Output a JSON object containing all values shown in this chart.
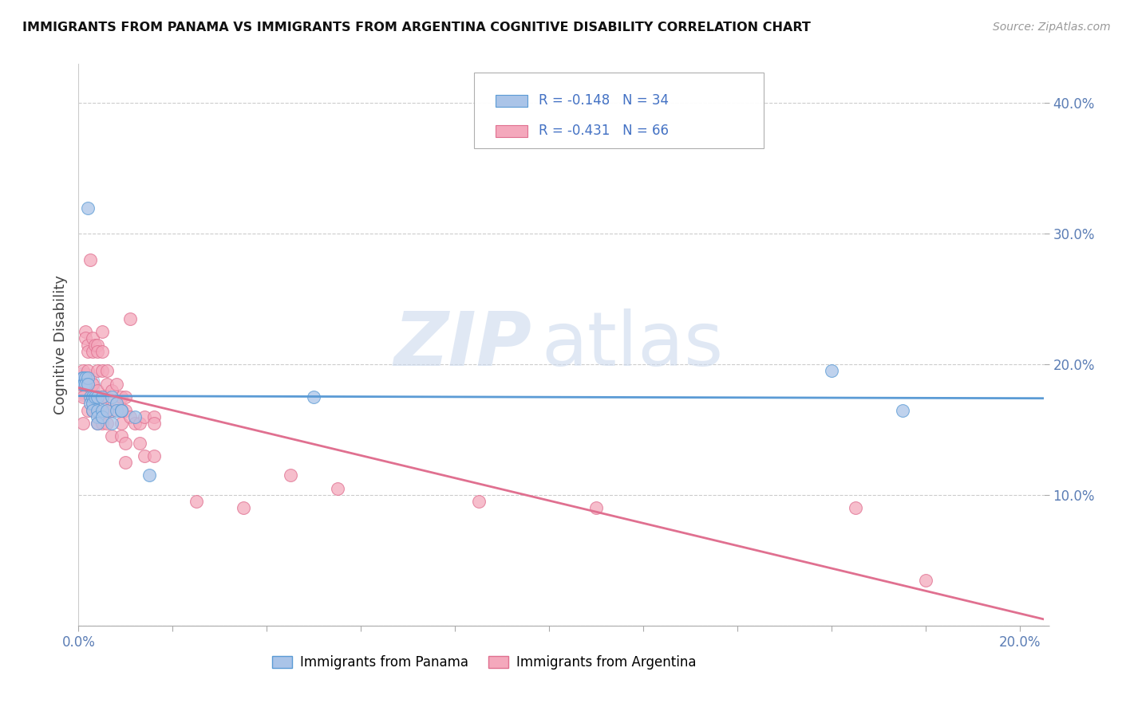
{
  "title": "IMMIGRANTS FROM PANAMA VS IMMIGRANTS FROM ARGENTINA COGNITIVE DISABILITY CORRELATION CHART",
  "source": "Source: ZipAtlas.com",
  "ylabel_label": "Cognitive Disability",
  "xlim": [
    0.0,
    0.205
  ],
  "ylim": [
    0.0,
    0.43
  ],
  "panama_R": -0.148,
  "panama_N": 34,
  "argentina_R": -0.431,
  "argentina_N": 66,
  "panama_color": "#aac4e8",
  "argentina_color": "#f4a8bc",
  "panama_line_color": "#5b9bd5",
  "argentina_line_color": "#e07090",
  "watermark_zip": "ZIP",
  "watermark_atlas": "atlas",
  "panama_x": [
    0.0008,
    0.001,
    0.001,
    0.0012,
    0.0015,
    0.0015,
    0.002,
    0.002,
    0.002,
    0.0025,
    0.0025,
    0.003,
    0.003,
    0.003,
    0.0035,
    0.004,
    0.004,
    0.004,
    0.004,
    0.005,
    0.005,
    0.005,
    0.006,
    0.007,
    0.007,
    0.008,
    0.008,
    0.009,
    0.009,
    0.012,
    0.015,
    0.05,
    0.16,
    0.175
  ],
  "panama_y": [
    0.19,
    0.19,
    0.185,
    0.185,
    0.19,
    0.185,
    0.19,
    0.185,
    0.32,
    0.175,
    0.17,
    0.175,
    0.17,
    0.165,
    0.175,
    0.175,
    0.165,
    0.16,
    0.155,
    0.175,
    0.165,
    0.16,
    0.165,
    0.155,
    0.175,
    0.17,
    0.165,
    0.165,
    0.165,
    0.16,
    0.115,
    0.175,
    0.195,
    0.165
  ],
  "argentina_x": [
    0.0005,
    0.001,
    0.001,
    0.001,
    0.001,
    0.0015,
    0.0015,
    0.002,
    0.002,
    0.002,
    0.002,
    0.002,
    0.0025,
    0.003,
    0.003,
    0.003,
    0.003,
    0.003,
    0.0035,
    0.004,
    0.004,
    0.004,
    0.004,
    0.004,
    0.004,
    0.005,
    0.005,
    0.005,
    0.005,
    0.005,
    0.006,
    0.006,
    0.006,
    0.006,
    0.006,
    0.007,
    0.007,
    0.007,
    0.008,
    0.008,
    0.009,
    0.009,
    0.009,
    0.009,
    0.01,
    0.01,
    0.01,
    0.01,
    0.011,
    0.011,
    0.012,
    0.013,
    0.013,
    0.014,
    0.014,
    0.016,
    0.016,
    0.016,
    0.025,
    0.035,
    0.045,
    0.055,
    0.085,
    0.11,
    0.165,
    0.18
  ],
  "argentina_y": [
    0.185,
    0.195,
    0.185,
    0.175,
    0.155,
    0.225,
    0.22,
    0.215,
    0.21,
    0.195,
    0.185,
    0.165,
    0.28,
    0.22,
    0.21,
    0.185,
    0.175,
    0.165,
    0.215,
    0.215,
    0.21,
    0.195,
    0.18,
    0.165,
    0.155,
    0.225,
    0.21,
    0.195,
    0.175,
    0.155,
    0.195,
    0.185,
    0.175,
    0.165,
    0.155,
    0.18,
    0.165,
    0.145,
    0.185,
    0.17,
    0.175,
    0.165,
    0.155,
    0.145,
    0.175,
    0.165,
    0.14,
    0.125,
    0.235,
    0.16,
    0.155,
    0.155,
    0.14,
    0.16,
    0.13,
    0.16,
    0.155,
    0.13,
    0.095,
    0.09,
    0.115,
    0.105,
    0.095,
    0.09,
    0.09,
    0.035
  ],
  "legend_label_panama": "R = -0.148   N = 34",
  "legend_label_argentina": "R = -0.431   N = 66",
  "bottom_legend_panama": "Immigrants from Panama",
  "bottom_legend_argentina": "Immigrants from Argentina"
}
